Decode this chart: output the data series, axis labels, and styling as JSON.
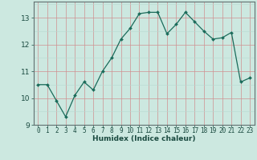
{
  "x_data": [
    0,
    1,
    2,
    3,
    4,
    5,
    6,
    7,
    8,
    9,
    10,
    11,
    12,
    13,
    14,
    15,
    16,
    17,
    18,
    19,
    20,
    21,
    22,
    23
  ],
  "y_data": [
    10.5,
    10.5,
    9.9,
    9.3,
    10.1,
    10.6,
    10.3,
    11.0,
    11.5,
    12.2,
    12.6,
    13.15,
    13.2,
    13.2,
    12.4,
    12.75,
    13.2,
    12.85,
    12.5,
    12.2,
    12.25,
    12.45,
    10.6,
    10.75
  ],
  "line_color": "#1a6b5a",
  "marker_color": "#1a6b5a",
  "bg_color": "#cce8e0",
  "grid_major_color": "#c08080",
  "grid_minor_color": "#c0d8d4",
  "xlabel": "Humidex (Indice chaleur)",
  "ylim": [
    9.0,
    13.6
  ],
  "xlim": [
    -0.5,
    23.5
  ],
  "yticks": [
    9,
    10,
    11,
    12,
    13
  ],
  "xticks": [
    0,
    1,
    2,
    3,
    4,
    5,
    6,
    7,
    8,
    9,
    10,
    11,
    12,
    13,
    14,
    15,
    16,
    17,
    18,
    19,
    20,
    21,
    22,
    23
  ],
  "tick_fontsize": 5.5,
  "xlabel_fontsize": 6.5
}
